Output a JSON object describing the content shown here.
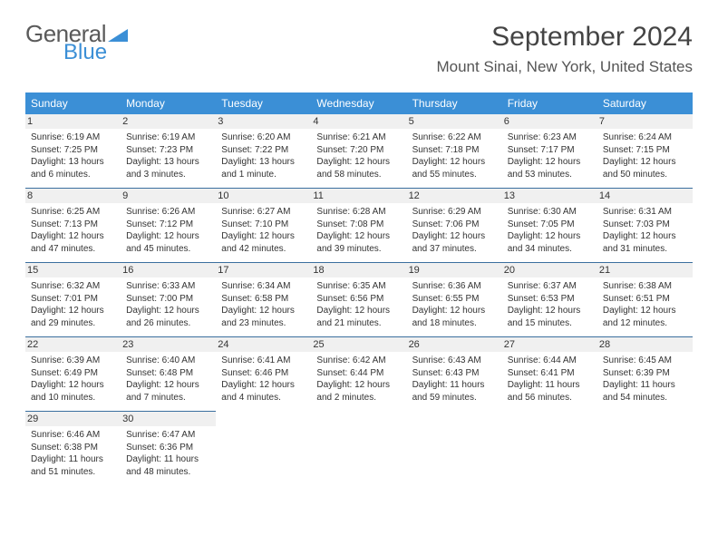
{
  "logo": {
    "text1": "General",
    "text2": "Blue"
  },
  "title": "September 2024",
  "location": "Mount Sinai, New York, United States",
  "colors": {
    "headerBg": "#3b8fd6",
    "dayNumBg": "#f0f0f0",
    "border": "#3b6f9f",
    "text": "#333333"
  },
  "dayNames": [
    "Sunday",
    "Monday",
    "Tuesday",
    "Wednesday",
    "Thursday",
    "Friday",
    "Saturday"
  ],
  "weeks": [
    [
      {
        "n": "1",
        "sr": "6:19 AM",
        "ss": "7:25 PM",
        "dl": "13 hours and 6 minutes."
      },
      {
        "n": "2",
        "sr": "6:19 AM",
        "ss": "7:23 PM",
        "dl": "13 hours and 3 minutes."
      },
      {
        "n": "3",
        "sr": "6:20 AM",
        "ss": "7:22 PM",
        "dl": "13 hours and 1 minute."
      },
      {
        "n": "4",
        "sr": "6:21 AM",
        "ss": "7:20 PM",
        "dl": "12 hours and 58 minutes."
      },
      {
        "n": "5",
        "sr": "6:22 AM",
        "ss": "7:18 PM",
        "dl": "12 hours and 55 minutes."
      },
      {
        "n": "6",
        "sr": "6:23 AM",
        "ss": "7:17 PM",
        "dl": "12 hours and 53 minutes."
      },
      {
        "n": "7",
        "sr": "6:24 AM",
        "ss": "7:15 PM",
        "dl": "12 hours and 50 minutes."
      }
    ],
    [
      {
        "n": "8",
        "sr": "6:25 AM",
        "ss": "7:13 PM",
        "dl": "12 hours and 47 minutes."
      },
      {
        "n": "9",
        "sr": "6:26 AM",
        "ss": "7:12 PM",
        "dl": "12 hours and 45 minutes."
      },
      {
        "n": "10",
        "sr": "6:27 AM",
        "ss": "7:10 PM",
        "dl": "12 hours and 42 minutes."
      },
      {
        "n": "11",
        "sr": "6:28 AM",
        "ss": "7:08 PM",
        "dl": "12 hours and 39 minutes."
      },
      {
        "n": "12",
        "sr": "6:29 AM",
        "ss": "7:06 PM",
        "dl": "12 hours and 37 minutes."
      },
      {
        "n": "13",
        "sr": "6:30 AM",
        "ss": "7:05 PM",
        "dl": "12 hours and 34 minutes."
      },
      {
        "n": "14",
        "sr": "6:31 AM",
        "ss": "7:03 PM",
        "dl": "12 hours and 31 minutes."
      }
    ],
    [
      {
        "n": "15",
        "sr": "6:32 AM",
        "ss": "7:01 PM",
        "dl": "12 hours and 29 minutes."
      },
      {
        "n": "16",
        "sr": "6:33 AM",
        "ss": "7:00 PM",
        "dl": "12 hours and 26 minutes."
      },
      {
        "n": "17",
        "sr": "6:34 AM",
        "ss": "6:58 PM",
        "dl": "12 hours and 23 minutes."
      },
      {
        "n": "18",
        "sr": "6:35 AM",
        "ss": "6:56 PM",
        "dl": "12 hours and 21 minutes."
      },
      {
        "n": "19",
        "sr": "6:36 AM",
        "ss": "6:55 PM",
        "dl": "12 hours and 18 minutes."
      },
      {
        "n": "20",
        "sr": "6:37 AM",
        "ss": "6:53 PM",
        "dl": "12 hours and 15 minutes."
      },
      {
        "n": "21",
        "sr": "6:38 AM",
        "ss": "6:51 PM",
        "dl": "12 hours and 12 minutes."
      }
    ],
    [
      {
        "n": "22",
        "sr": "6:39 AM",
        "ss": "6:49 PM",
        "dl": "12 hours and 10 minutes."
      },
      {
        "n": "23",
        "sr": "6:40 AM",
        "ss": "6:48 PM",
        "dl": "12 hours and 7 minutes."
      },
      {
        "n": "24",
        "sr": "6:41 AM",
        "ss": "6:46 PM",
        "dl": "12 hours and 4 minutes."
      },
      {
        "n": "25",
        "sr": "6:42 AM",
        "ss": "6:44 PM",
        "dl": "12 hours and 2 minutes."
      },
      {
        "n": "26",
        "sr": "6:43 AM",
        "ss": "6:43 PM",
        "dl": "11 hours and 59 minutes."
      },
      {
        "n": "27",
        "sr": "6:44 AM",
        "ss": "6:41 PM",
        "dl": "11 hours and 56 minutes."
      },
      {
        "n": "28",
        "sr": "6:45 AM",
        "ss": "6:39 PM",
        "dl": "11 hours and 54 minutes."
      }
    ],
    [
      {
        "n": "29",
        "sr": "6:46 AM",
        "ss": "6:38 PM",
        "dl": "11 hours and 51 minutes."
      },
      {
        "n": "30",
        "sr": "6:47 AM",
        "ss": "6:36 PM",
        "dl": "11 hours and 48 minutes."
      },
      null,
      null,
      null,
      null,
      null
    ]
  ]
}
